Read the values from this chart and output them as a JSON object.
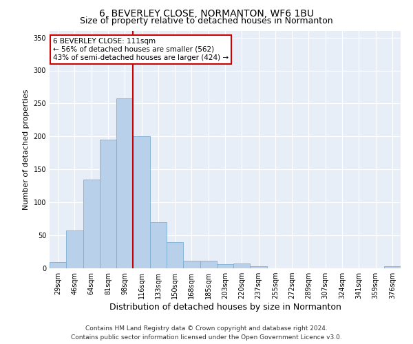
{
  "title": "6, BEVERLEY CLOSE, NORMANTON, WF6 1BU",
  "subtitle": "Size of property relative to detached houses in Normanton",
  "xlabel": "Distribution of detached houses by size in Normanton",
  "ylabel": "Number of detached properties",
  "categories": [
    "29sqm",
    "46sqm",
    "64sqm",
    "81sqm",
    "98sqm",
    "116sqm",
    "133sqm",
    "150sqm",
    "168sqm",
    "185sqm",
    "203sqm",
    "220sqm",
    "237sqm",
    "255sqm",
    "272sqm",
    "289sqm",
    "307sqm",
    "324sqm",
    "341sqm",
    "359sqm",
    "376sqm"
  ],
  "values": [
    9,
    57,
    135,
    195,
    258,
    200,
    70,
    40,
    12,
    12,
    6,
    7,
    3,
    0,
    0,
    0,
    0,
    0,
    0,
    0,
    3
  ],
  "bar_color": "#b8d0ea",
  "bar_edge_color": "#7aafd4",
  "property_line_color": "#cc0000",
  "annotation_text": "6 BEVERLEY CLOSE: 111sqm\n← 56% of detached houses are smaller (562)\n43% of semi-detached houses are larger (424) →",
  "annotation_box_color": "#ffffff",
  "annotation_box_edge": "#cc0000",
  "ylim": [
    0,
    360
  ],
  "yticks": [
    0,
    50,
    100,
    150,
    200,
    250,
    300,
    350
  ],
  "background_color": "#e8eef8",
  "footer_line1": "Contains HM Land Registry data © Crown copyright and database right 2024.",
  "footer_line2": "Contains public sector information licensed under the Open Government Licence v3.0.",
  "title_fontsize": 10,
  "subtitle_fontsize": 9,
  "xlabel_fontsize": 9,
  "ylabel_fontsize": 8,
  "tick_fontsize": 7,
  "annotation_fontsize": 7.5,
  "footer_fontsize": 6.5
}
